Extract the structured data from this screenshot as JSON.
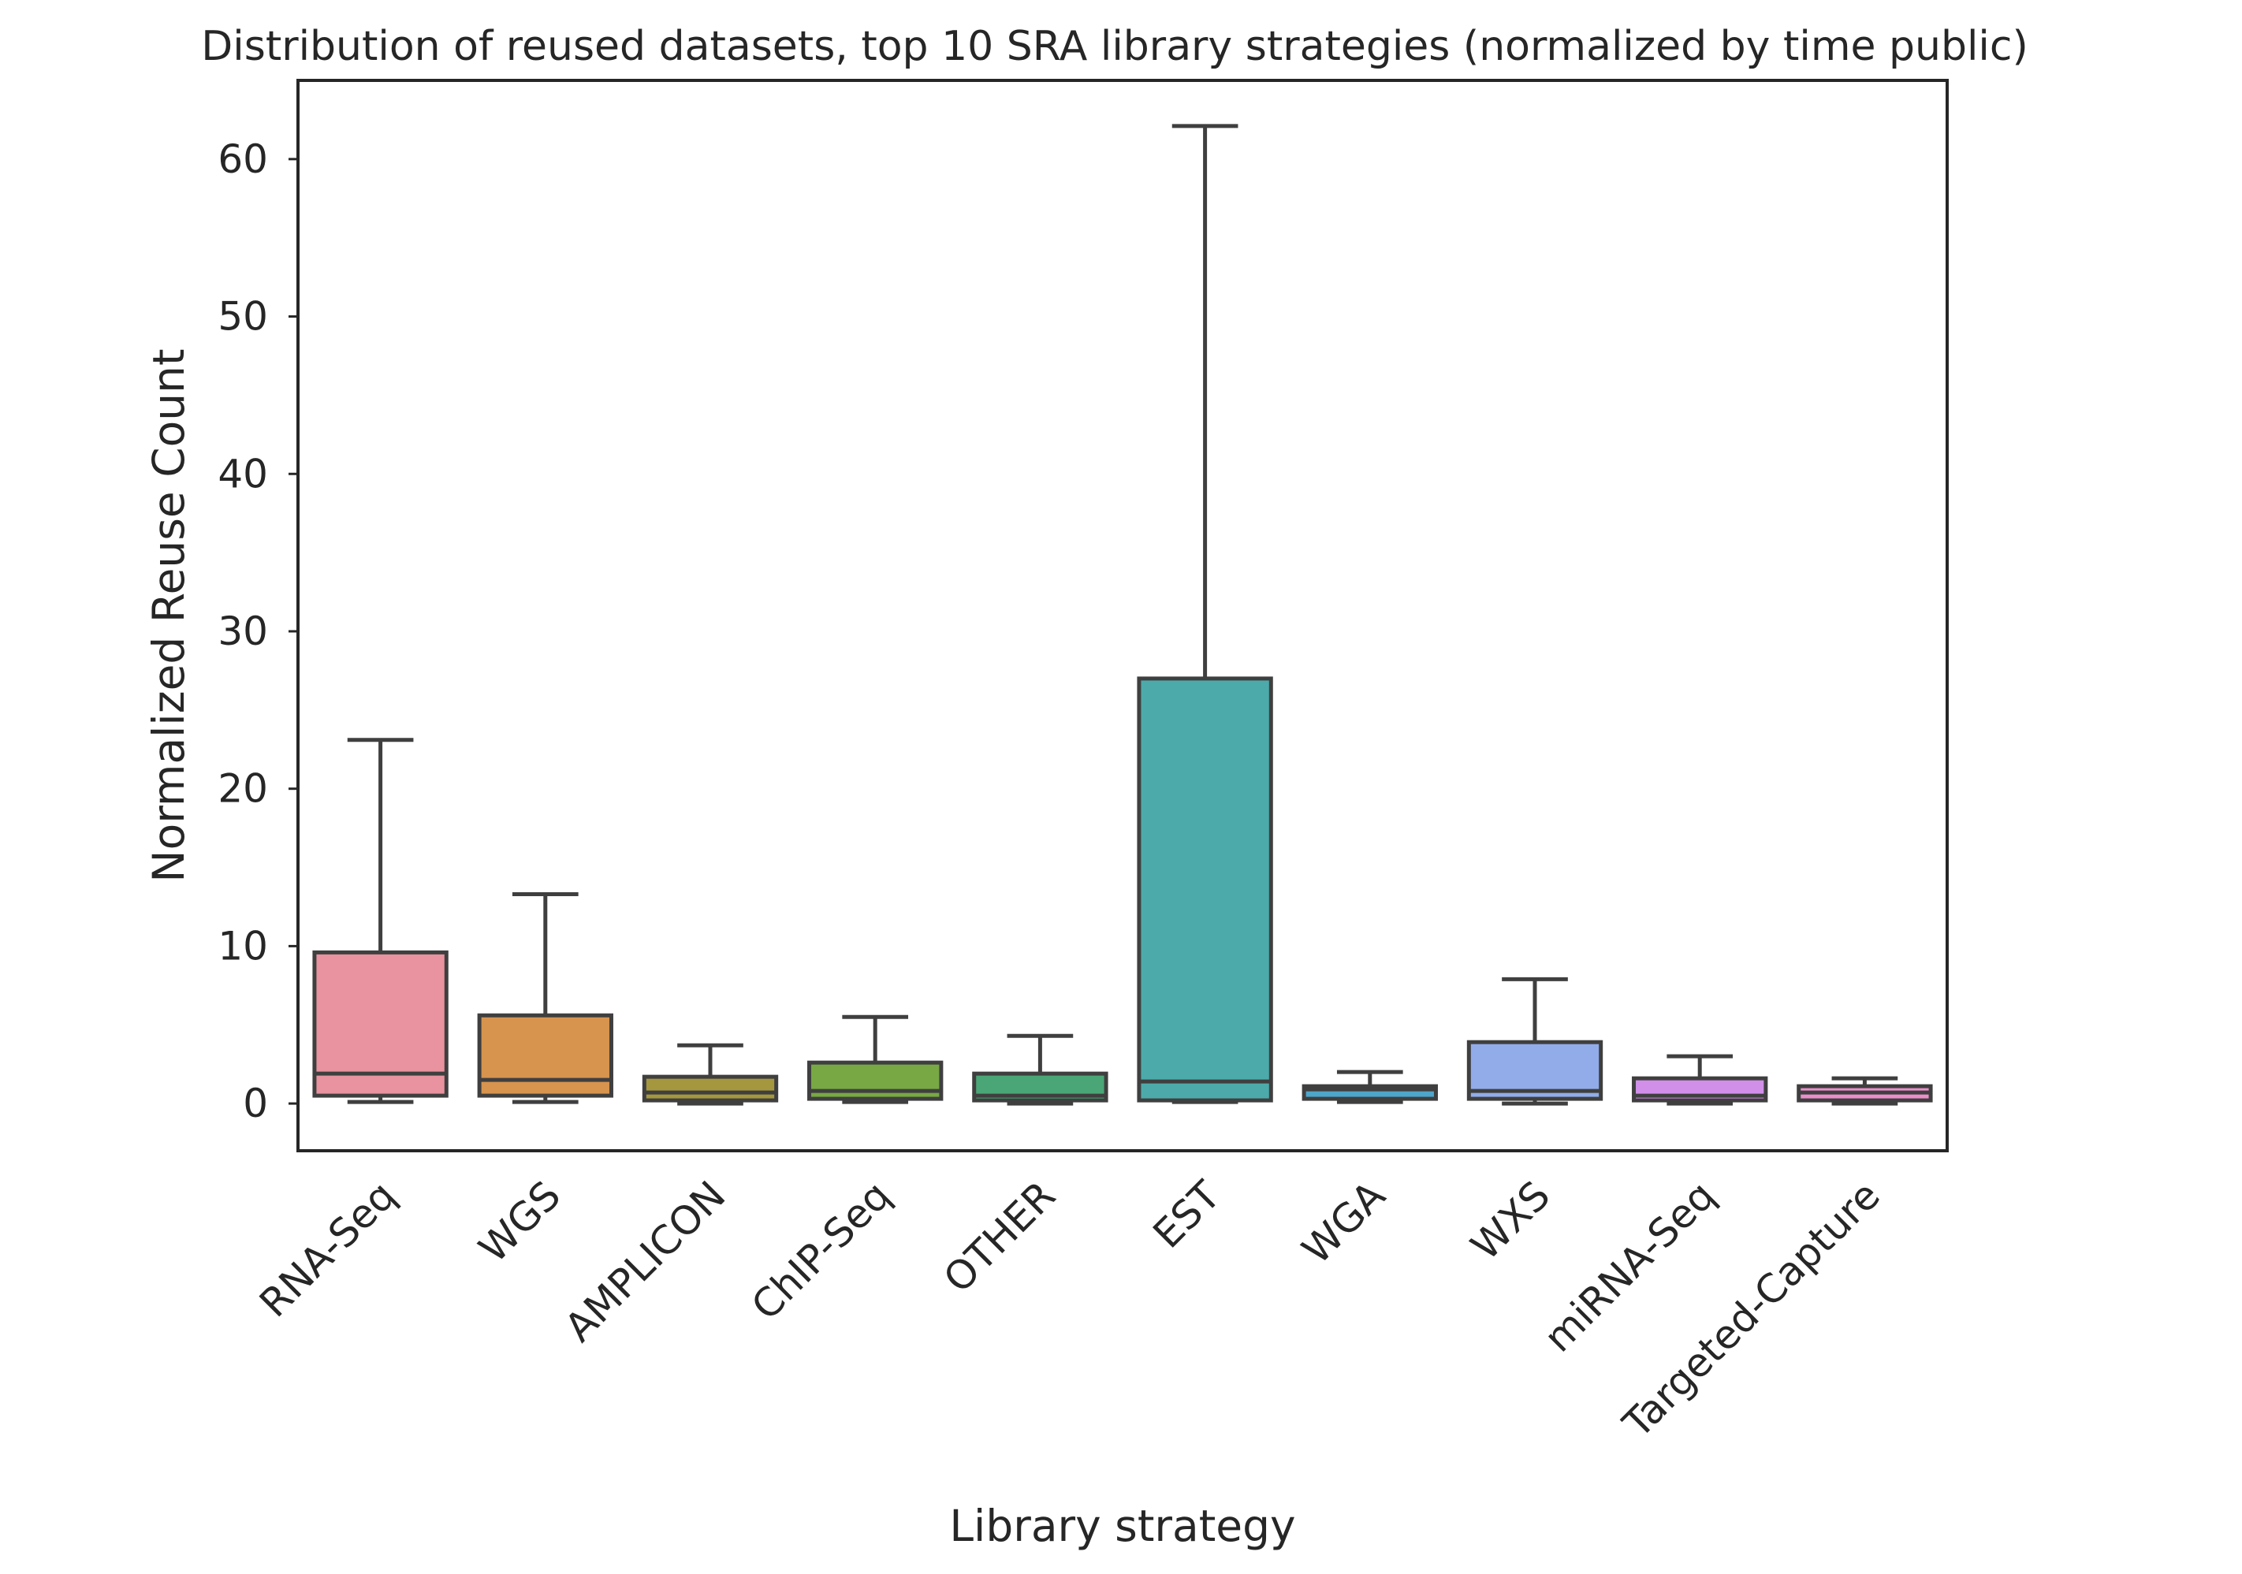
{
  "chart_data": {
    "type": "box",
    "title": "Distribution of reused datasets, top 10 SRA library strategies (normalized by time public)",
    "xlabel": "Library strategy",
    "ylabel": "Normalized Reuse Count",
    "ylim": [
      -3,
      65
    ],
    "yticks": [
      0,
      10,
      20,
      30,
      40,
      50,
      60
    ],
    "grid": false,
    "categories": [
      "RNA-Seq",
      "WGS",
      "AMPLICON",
      "ChIP-Seq",
      "OTHER",
      "EST",
      "WGA",
      "WXS",
      "miRNA-Seq",
      "Targeted-Capture"
    ],
    "series": [
      {
        "category": "RNA-Seq",
        "whisker_low": 0.1,
        "q1": 0.5,
        "median": 1.9,
        "q3": 9.6,
        "whisker_high": 23.1,
        "color": "#e8939f"
      },
      {
        "category": "WGS",
        "whisker_low": 0.1,
        "q1": 0.5,
        "median": 1.5,
        "q3": 5.6,
        "whisker_high": 13.3,
        "color": "#d7944e"
      },
      {
        "category": "AMPLICON",
        "whisker_low": 0.0,
        "q1": 0.2,
        "median": 0.7,
        "q3": 1.7,
        "whisker_high": 3.7,
        "color": "#a5973e"
      },
      {
        "category": "ChIP-Seq",
        "whisker_low": 0.1,
        "q1": 0.3,
        "median": 0.8,
        "q3": 2.6,
        "whisker_high": 5.5,
        "color": "#78a843"
      },
      {
        "category": "OTHER",
        "whisker_low": 0.0,
        "q1": 0.2,
        "median": 0.5,
        "q3": 1.9,
        "whisker_high": 4.3,
        "color": "#4aa676"
      },
      {
        "category": "EST",
        "whisker_low": 0.1,
        "q1": 0.2,
        "median": 1.4,
        "q3": 27.0,
        "whisker_high": 62.1,
        "color": "#4cabaa"
      },
      {
        "category": "WGA",
        "whisker_low": 0.1,
        "q1": 0.3,
        "median": 0.9,
        "q3": 1.1,
        "whisker_high": 2.0,
        "color": "#4ea6cb"
      },
      {
        "category": "WXS",
        "whisker_low": 0.0,
        "q1": 0.3,
        "median": 0.8,
        "q3": 3.9,
        "whisker_high": 7.9,
        "color": "#92acea"
      },
      {
        "category": "miRNA-Seq",
        "whisker_low": 0.0,
        "q1": 0.2,
        "median": 0.5,
        "q3": 1.6,
        "whisker_high": 3.0,
        "color": "#d28fea"
      },
      {
        "category": "Targeted-Capture",
        "whisker_low": 0.0,
        "q1": 0.2,
        "median": 0.7,
        "q3": 1.1,
        "whisker_high": 1.6,
        "color": "#ea8fc9"
      }
    ]
  }
}
